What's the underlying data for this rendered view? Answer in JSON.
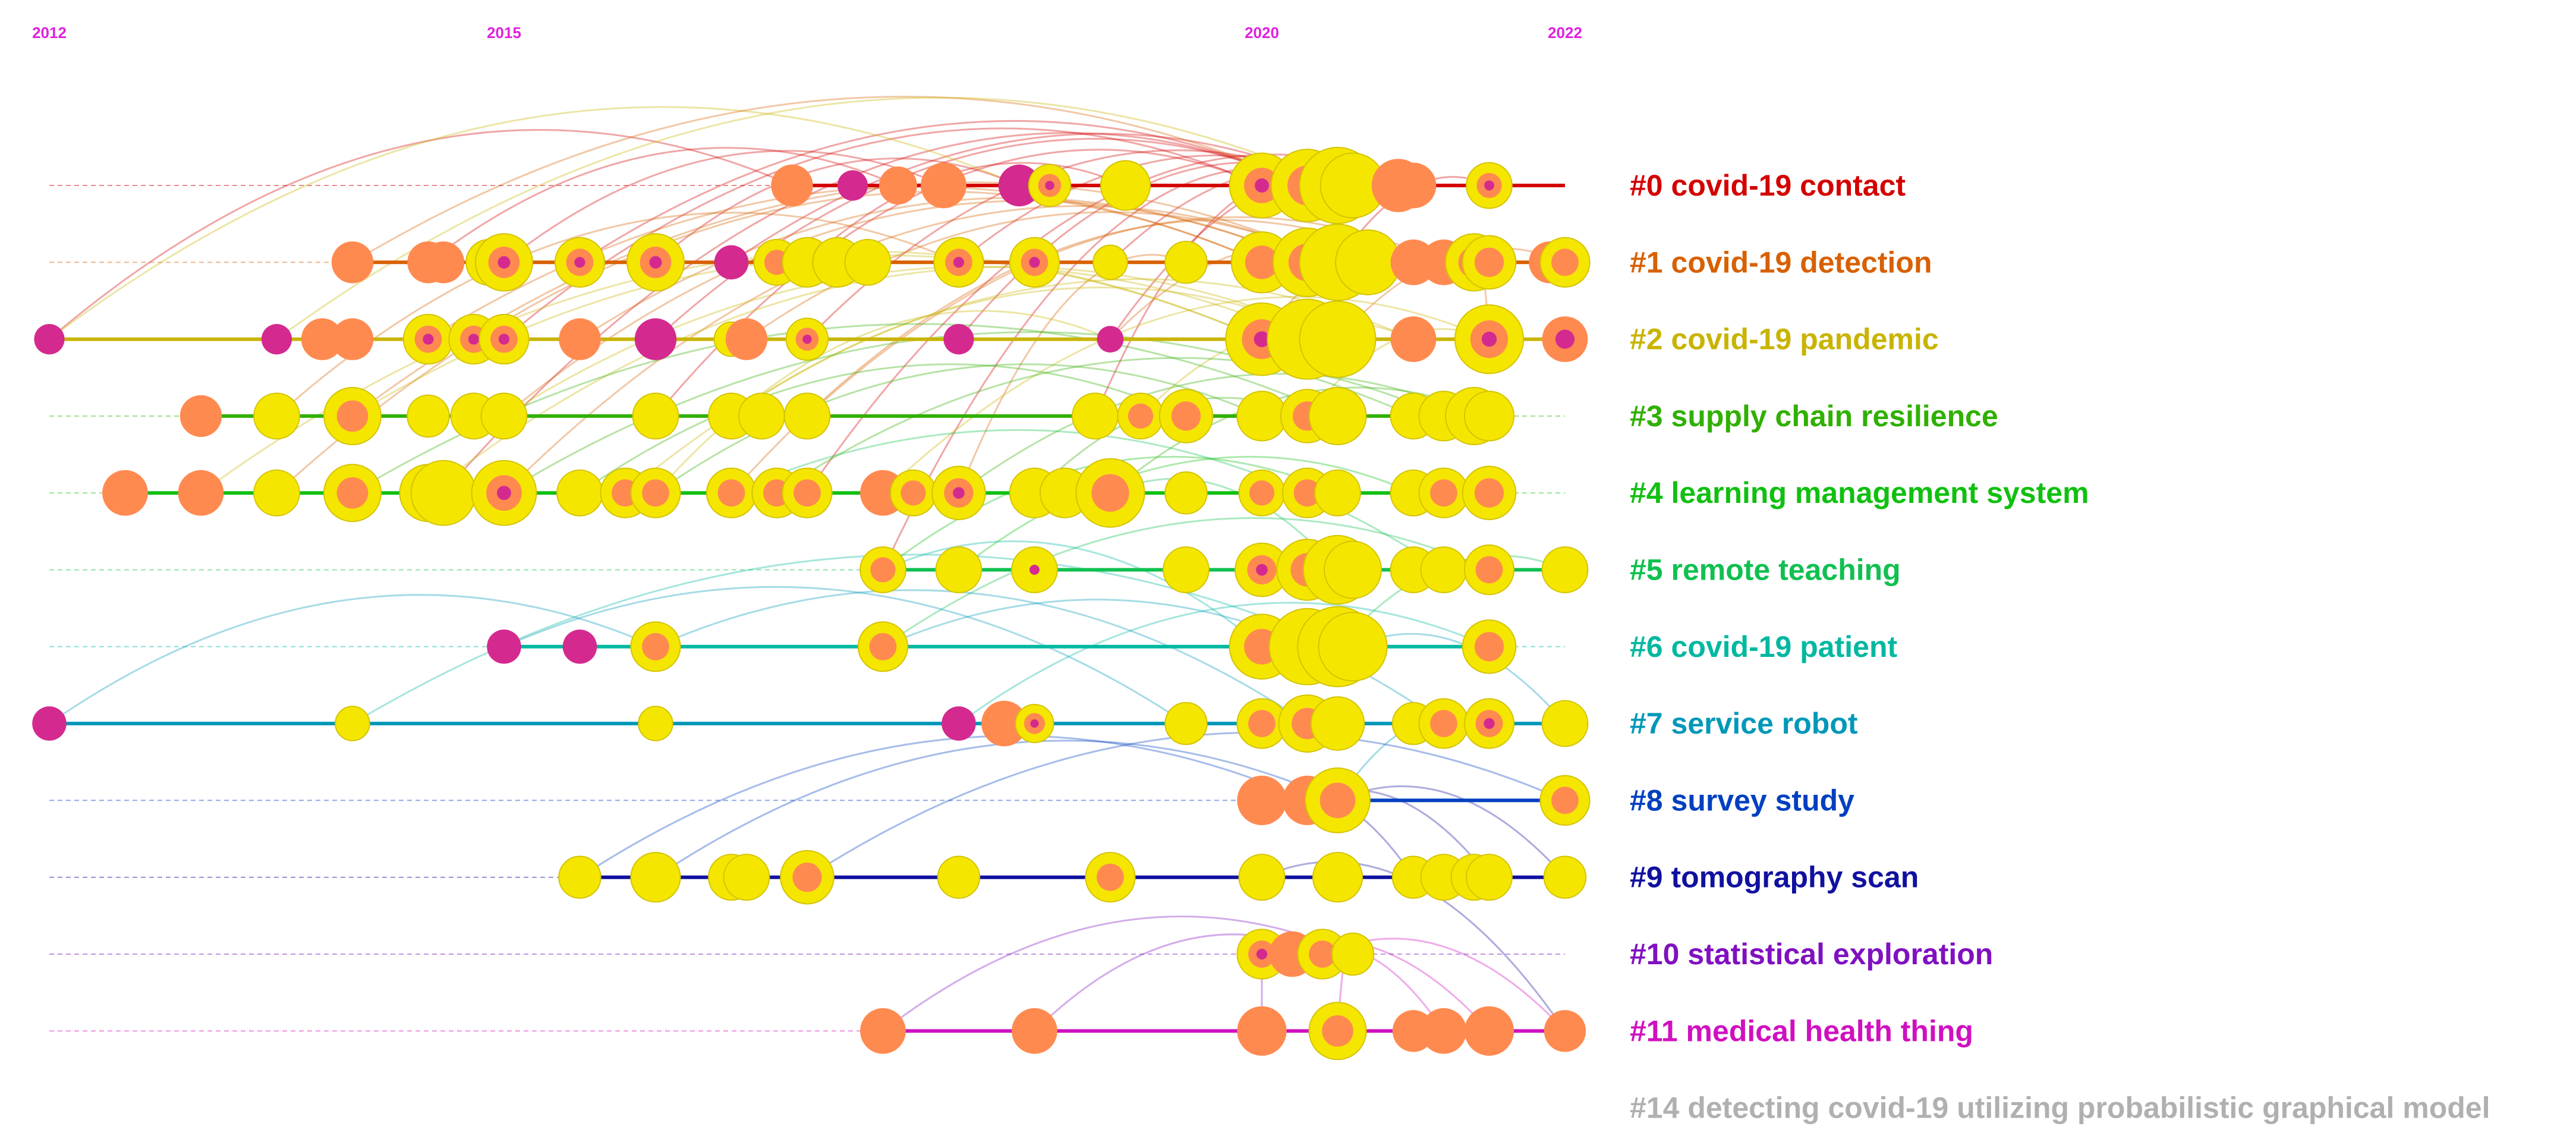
{
  "colors": {
    "year_label": "#e020e0",
    "node_outer": "#f5e600",
    "node_mid": "#ff8a50",
    "node_core": "#d42a8f",
    "node_stroke": "#d4c400"
  },
  "years": [
    {
      "label": "2012",
      "value": 2012
    },
    {
      "label": "2015",
      "value": 2015
    },
    {
      "label": "2020",
      "value": 2020
    },
    {
      "label": "2022",
      "value": 2022
    }
  ],
  "axis": {
    "min_year": 2012,
    "max_year": 2022
  },
  "clusters": [
    {
      "id": 0,
      "label": "#0 covid-19 contact",
      "color": "#d40000",
      "span": [
        2016.9,
        2022
      ],
      "nodes": [
        [
          2016.9,
          "m",
          2.2
        ],
        [
          2017.3,
          "c",
          1.6
        ],
        [
          2017.6,
          "m",
          2.0
        ],
        [
          2017.9,
          "m",
          2.4
        ],
        [
          2018.4,
          "c",
          2.2
        ],
        [
          2018.6,
          "ymc",
          2.2
        ],
        [
          2019.1,
          "y",
          2.6
        ],
        [
          2020,
          "ymc",
          3.4
        ],
        [
          2020.3,
          "ym",
          3.8
        ],
        [
          2020.5,
          "y",
          4.0
        ],
        [
          2020.6,
          "y",
          3.4
        ],
        [
          2020.9,
          "m",
          2.8
        ],
        [
          2021.0,
          "m",
          2.4
        ],
        [
          2021.5,
          "ymc",
          2.4
        ]
      ]
    },
    {
      "id": 1,
      "label": "#1 covid-19 detection",
      "color": "#d86000",
      "span": [
        2014.0,
        2022
      ],
      "nodes": [
        [
          2014.0,
          "m",
          2.2
        ],
        [
          2014.5,
          "m",
          2.2
        ],
        [
          2014.6,
          "m",
          2.2
        ],
        [
          2014.9,
          "ym",
          2.4
        ],
        [
          2015.0,
          "ymc",
          3.0
        ],
        [
          2015.5,
          "ymc",
          2.6
        ],
        [
          2016.0,
          "ymc",
          3.0
        ],
        [
          2016.5,
          "c",
          1.8
        ],
        [
          2016.8,
          "ym",
          2.4
        ],
        [
          2017.0,
          "y",
          2.6
        ],
        [
          2017.2,
          "y",
          2.6
        ],
        [
          2017.4,
          "y",
          2.4
        ],
        [
          2018.0,
          "ymc",
          2.6
        ],
        [
          2018.5,
          "ymc",
          2.6
        ],
        [
          2019.0,
          "y",
          1.8
        ],
        [
          2019.5,
          "y",
          2.2
        ],
        [
          2020,
          "ym",
          3.2
        ],
        [
          2020.3,
          "ym",
          3.6
        ],
        [
          2020.5,
          "y",
          4.0
        ],
        [
          2020.7,
          "y",
          3.4
        ],
        [
          2021.0,
          "m",
          2.4
        ],
        [
          2021.2,
          "m",
          2.4
        ],
        [
          2021.4,
          "ymc",
          3.0
        ],
        [
          2021.5,
          "ym",
          2.8
        ],
        [
          2021.9,
          "m",
          2.2
        ],
        [
          2022,
          "ym",
          2.6
        ]
      ]
    },
    {
      "id": 2,
      "label": "#2 covid-19 pandemic",
      "color": "#c8b400",
      "span": [
        2012.0,
        2022
      ],
      "nodes": [
        [
          2012.0,
          "c",
          1.6
        ],
        [
          2013.5,
          "c",
          1.6
        ],
        [
          2013.8,
          "m",
          2.2
        ],
        [
          2014.0,
          "m",
          2.2
        ],
        [
          2014.5,
          "ymc",
          2.6
        ],
        [
          2014.8,
          "ymc",
          2.6
        ],
        [
          2015.0,
          "ymc",
          2.6
        ],
        [
          2015.5,
          "m",
          2.2
        ],
        [
          2016.0,
          "c",
          2.2
        ],
        [
          2016.5,
          "y",
          1.8
        ],
        [
          2016.6,
          "m",
          2.2
        ],
        [
          2017.0,
          "ymc",
          2.2
        ],
        [
          2018.0,
          "c",
          1.6
        ],
        [
          2019.0,
          "c",
          1.4
        ],
        [
          2020,
          "ymc",
          3.8
        ],
        [
          2020.3,
          "y",
          4.2
        ],
        [
          2020.5,
          "y",
          4.0
        ],
        [
          2021.0,
          "m",
          2.4
        ],
        [
          2021.5,
          "ymc",
          3.6
        ],
        [
          2022,
          "mc",
          2.4
        ]
      ]
    },
    {
      "id": 3,
      "label": "#3 supply chain resilience",
      "color": "#30b000",
      "span": [
        2013.0,
        2021.5
      ],
      "nodes": [
        [
          2013.0,
          "m",
          2.2
        ],
        [
          2013.5,
          "y",
          2.4
        ],
        [
          2014.0,
          "ym",
          3.0
        ],
        [
          2014.5,
          "y",
          2.2
        ],
        [
          2014.8,
          "y",
          2.4
        ],
        [
          2015.0,
          "y",
          2.4
        ],
        [
          2016.0,
          "y",
          2.4
        ],
        [
          2016.5,
          "y",
          2.4
        ],
        [
          2016.7,
          "y",
          2.4
        ],
        [
          2017.0,
          "y",
          2.4
        ],
        [
          2018.9,
          "y",
          2.4
        ],
        [
          2019.2,
          "ym",
          2.4
        ],
        [
          2019.5,
          "ym",
          2.8
        ],
        [
          2020,
          "y",
          2.6
        ],
        [
          2020.3,
          "ym",
          2.8
        ],
        [
          2020.5,
          "y",
          3.0
        ],
        [
          2021.0,
          "y",
          2.4
        ],
        [
          2021.2,
          "y",
          2.6
        ],
        [
          2021.4,
          "y",
          3.0
        ],
        [
          2021.5,
          "y",
          2.6
        ]
      ]
    },
    {
      "id": 4,
      "label": "#4 learning management system",
      "color": "#10c010",
      "span": [
        2012.5,
        2021.5
      ],
      "nodes": [
        [
          2012.5,
          "m",
          2.4
        ],
        [
          2013.0,
          "m",
          2.4
        ],
        [
          2013.5,
          "y",
          2.4
        ],
        [
          2014.0,
          "ym",
          3.0
        ],
        [
          2014.5,
          "y",
          3.0
        ],
        [
          2014.6,
          "y",
          3.4
        ],
        [
          2015.0,
          "ymc",
          3.4
        ],
        [
          2015.5,
          "y",
          2.4
        ],
        [
          2015.8,
          "ym",
          2.6
        ],
        [
          2016.0,
          "ym",
          2.6
        ],
        [
          2016.5,
          "ym",
          2.6
        ],
        [
          2016.8,
          "ym",
          2.6
        ],
        [
          2017.0,
          "ym",
          2.6
        ],
        [
          2017.5,
          "m",
          2.4
        ],
        [
          2017.7,
          "ym",
          2.4
        ],
        [
          2018.0,
          "ymc",
          2.8
        ],
        [
          2018.5,
          "y",
          2.6
        ],
        [
          2018.7,
          "y",
          2.6
        ],
        [
          2019.0,
          "ym",
          3.6
        ],
        [
          2019.5,
          "y",
          2.2
        ],
        [
          2020,
          "ym",
          2.4
        ],
        [
          2020.3,
          "ym",
          2.6
        ],
        [
          2020.5,
          "y",
          2.4
        ],
        [
          2021.0,
          "y",
          2.4
        ],
        [
          2021.2,
          "ym",
          2.6
        ],
        [
          2021.5,
          "ym",
          2.8
        ]
      ]
    },
    {
      "id": 5,
      "label": "#5 remote teaching",
      "color": "#10c050",
      "span": [
        2017.5,
        2022
      ],
      "nodes": [
        [
          2017.5,
          "ym",
          2.4
        ],
        [
          2018.0,
          "y",
          2.4
        ],
        [
          2018.5,
          "yc",
          2.4
        ],
        [
          2019.5,
          "y",
          2.4
        ],
        [
          2020,
          "ymc",
          2.8
        ],
        [
          2020.3,
          "ym",
          3.2
        ],
        [
          2020.5,
          "y",
          3.6
        ],
        [
          2020.6,
          "y",
          3.0
        ],
        [
          2021.0,
          "y",
          2.4
        ],
        [
          2021.2,
          "y",
          2.4
        ],
        [
          2021.5,
          "ym",
          2.6
        ],
        [
          2022,
          "y",
          2.4
        ]
      ]
    },
    {
      "id": 6,
      "label": "#6 covid-19 patient",
      "color": "#00b8a0",
      "span": [
        2015.0,
        2021.5
      ],
      "nodes": [
        [
          2015.0,
          "c",
          1.8
        ],
        [
          2015.5,
          "c",
          1.8
        ],
        [
          2016.0,
          "ym",
          2.6
        ],
        [
          2017.5,
          "ym",
          2.6
        ],
        [
          2020,
          "ym",
          3.4
        ],
        [
          2020.3,
          "y",
          4.0
        ],
        [
          2020.5,
          "y",
          4.2
        ],
        [
          2020.6,
          "y",
          3.6
        ],
        [
          2021.5,
          "ym",
          2.8
        ]
      ]
    },
    {
      "id": 7,
      "label": "#7 service robot",
      "color": "#0098b8",
      "span": [
        2012.0,
        2022
      ],
      "nodes": [
        [
          2012.0,
          "c",
          1.8
        ],
        [
          2014.0,
          "y",
          1.8
        ],
        [
          2016.0,
          "y",
          1.8
        ],
        [
          2018.0,
          "c",
          1.8
        ],
        [
          2018.3,
          "m",
          2.4
        ],
        [
          2018.5,
          "ymc",
          2.0
        ],
        [
          2019.5,
          "y",
          2.2
        ],
        [
          2020,
          "ym",
          2.6
        ],
        [
          2020.3,
          "ym",
          3.0
        ],
        [
          2020.5,
          "y",
          2.8
        ],
        [
          2021.0,
          "y",
          2.2
        ],
        [
          2021.2,
          "ym",
          2.6
        ],
        [
          2021.5,
          "ymc",
          2.6
        ],
        [
          2022,
          "y",
          2.4
        ]
      ]
    },
    {
      "id": 8,
      "label": "#8 survey study",
      "color": "#0040c0",
      "span": [
        2020,
        2022
      ],
      "nodes": [
        [
          2020,
          "m",
          2.6
        ],
        [
          2020.3,
          "m",
          2.6
        ],
        [
          2020.5,
          "ym",
          3.4
        ],
        [
          2022,
          "ym",
          2.6
        ]
      ]
    },
    {
      "id": 9,
      "label": "#9 tomography scan",
      "color": "#1010a0",
      "span": [
        2015.5,
        2022
      ],
      "nodes": [
        [
          2015.5,
          "y",
          2.2
        ],
        [
          2016.0,
          "y",
          2.6
        ],
        [
          2016.5,
          "y",
          2.4
        ],
        [
          2016.6,
          "y",
          2.4
        ],
        [
          2017.0,
          "ym",
          2.8
        ],
        [
          2018.0,
          "y",
          2.2
        ],
        [
          2019.0,
          "ym",
          2.6
        ],
        [
          2020,
          "y",
          2.4
        ],
        [
          2020.5,
          "y",
          2.6
        ],
        [
          2021.0,
          "y",
          2.2
        ],
        [
          2021.2,
          "y",
          2.4
        ],
        [
          2021.4,
          "y",
          2.4
        ],
        [
          2021.5,
          "y",
          2.4
        ],
        [
          2022,
          "y",
          2.2
        ]
      ]
    },
    {
      "id": 10,
      "label": "#10 statistical exploration",
      "color": "#8010c0",
      "span": [
        2020,
        2020.6
      ],
      "nodes": [
        [
          2020,
          "ymc",
          2.6
        ],
        [
          2020.2,
          "m",
          2.4
        ],
        [
          2020.4,
          "ym",
          2.6
        ],
        [
          2020.6,
          "y",
          2.2
        ]
      ]
    },
    {
      "id": 11,
      "label": "#11 medical health thing",
      "color": "#d010c0",
      "span": [
        2017.5,
        2022
      ],
      "nodes": [
        [
          2017.5,
          "m",
          2.4
        ],
        [
          2018.5,
          "m",
          2.4
        ],
        [
          2020,
          "m",
          2.6
        ],
        [
          2020.5,
          "ym",
          3.0
        ],
        [
          2021.0,
          "m",
          2.2
        ],
        [
          2021.2,
          "m",
          2.4
        ],
        [
          2021.5,
          "m",
          2.6
        ],
        [
          2022,
          "m",
          2.2
        ]
      ]
    },
    {
      "id": 14,
      "label": "#14 detecting covid-19 utilizing probabilistic graphical model",
      "color": "#b0b0b0",
      "span": null,
      "nodes": []
    }
  ],
  "links": [
    [
      0,
      2016.9,
      2,
      2012.0
    ],
    [
      0,
      2017.6,
      1,
      2014.5
    ],
    [
      0,
      2017.9,
      1,
      2015.0
    ],
    [
      0,
      2018.4,
      1,
      2016.0
    ],
    [
      0,
      2019.1,
      1,
      2017.0
    ],
    [
      0,
      2020.3,
      1,
      2015.5
    ],
    [
      0,
      2020.5,
      1,
      2016.5
    ],
    [
      0,
      2020.6,
      1,
      2018.0
    ],
    [
      0,
      2020.9,
      1,
      2019.0
    ],
    [
      0,
      2021.5,
      1,
      2020.5
    ],
    [
      0,
      2020,
      2,
      2015.0
    ],
    [
      0,
      2020.3,
      2,
      2016.0
    ],
    [
      0,
      2020.5,
      2,
      2017.0
    ],
    [
      0,
      2020.6,
      2,
      2018.0
    ],
    [
      0,
      2021.0,
      2,
      2019.0
    ],
    [
      0,
      2020,
      3,
      2016.0
    ],
    [
      0,
      2020.5,
      3,
      2018.9
    ],
    [
      0,
      2021.0,
      4,
      2017.0
    ],
    [
      0,
      2020.3,
      4,
      2014.6
    ],
    [
      0,
      2020.5,
      5,
      2017.5
    ],
    [
      1,
      2020,
      2,
      2014.5
    ],
    [
      1,
      2020.3,
      2,
      2015.5
    ],
    [
      1,
      2020.5,
      2,
      2016.6
    ],
    [
      1,
      2020.7,
      2,
      2019.0
    ],
    [
      1,
      2021.0,
      2,
      2020
    ],
    [
      1,
      2021.4,
      2,
      2021.5
    ],
    [
      1,
      2022,
      2,
      2020.5
    ],
    [
      1,
      2020.5,
      3,
      2014.0
    ],
    [
      1,
      2020.3,
      3,
      2015.0
    ],
    [
      1,
      2021.2,
      3,
      2017.0
    ],
    [
      1,
      2020,
      4,
      2013.5
    ],
    [
      1,
      2020.5,
      4,
      2015.0
    ],
    [
      1,
      2021.0,
      4,
      2016.5
    ],
    [
      1,
      2019.5,
      4,
      2018.0
    ],
    [
      1,
      2018.0,
      3,
      2013.5
    ],
    [
      2,
      2020,
      3,
      2014.0
    ],
    [
      2,
      2020.3,
      3,
      2015.0
    ],
    [
      2,
      2020.5,
      3,
      2016.5
    ],
    [
      2,
      2021.0,
      3,
      2019.2
    ],
    [
      2,
      2021.5,
      3,
      2020.3
    ],
    [
      2,
      2020,
      4,
      2013.0
    ],
    [
      2,
      2020.5,
      4,
      2014.5
    ],
    [
      2,
      2021.0,
      4,
      2015.8
    ],
    [
      2,
      2021.5,
      4,
      2017.5
    ],
    [
      2,
      2019.0,
      4,
      2016.0
    ],
    [
      3,
      2020.5,
      4,
      2014.0
    ],
    [
      3,
      2021.0,
      4,
      2015.0
    ],
    [
      3,
      2021.2,
      4,
      2016.8
    ],
    [
      3,
      2021.4,
      4,
      2018.0
    ],
    [
      3,
      2020.3,
      4,
      2018.5
    ],
    [
      3,
      2021.5,
      4,
      2019.0
    ],
    [
      3,
      2020,
      4,
      2016.0
    ],
    [
      3,
      2019.5,
      4,
      2015.5
    ],
    [
      4,
      2021.0,
      5,
      2018.0
    ],
    [
      4,
      2020.5,
      5,
      2017.5
    ],
    [
      5,
      2020.5,
      4,
      2019.0
    ],
    [
      5,
      2021.2,
      4,
      2016.5
    ],
    [
      5,
      2022,
      6,
      2020.5
    ],
    [
      5,
      2021.5,
      6,
      2017.5
    ],
    [
      6,
      2021.5,
      7,
      2018.0
    ],
    [
      6,
      2020.5,
      7,
      2014.0
    ],
    [
      6,
      2020,
      5,
      2017.5
    ],
    [
      7,
      2020.3,
      6,
      2016.0
    ],
    [
      7,
      2021.2,
      6,
      2017.5
    ],
    [
      7,
      2022,
      6,
      2020.6
    ],
    [
      7,
      2021.5,
      8,
      2020.5
    ],
    [
      7,
      2019.5,
      6,
      2015.0
    ],
    [
      7,
      2012.0,
      6,
      2016.0
    ],
    [
      8,
      2020.5,
      9,
      2016.0
    ],
    [
      8,
      2020.3,
      9,
      2015.5
    ],
    [
      8,
      2022,
      9,
      2017.0
    ],
    [
      9,
      2021.0,
      8,
      2020
    ],
    [
      9,
      2022,
      8,
      2020.5
    ],
    [
      9,
      2021.5,
      8,
      2020.3
    ],
    [
      10,
      2020.4,
      11,
      2018.5
    ],
    [
      10,
      2020.6,
      11,
      2017.5
    ],
    [
      10,
      2020,
      11,
      2020
    ],
    [
      11,
      2022,
      10,
      2020.4
    ],
    [
      11,
      2021.2,
      10,
      2020.2
    ],
    [
      11,
      2021.5,
      10,
      2020
    ],
    [
      11,
      2020.5,
      10,
      2020.6
    ],
    [
      9,
      2020,
      11,
      2022
    ],
    [
      2,
      2012.0,
      0,
      2018.4
    ],
    [
      1,
      2014.0,
      0,
      2020.3
    ],
    [
      2,
      2013.5,
      0,
      2020.5
    ]
  ]
}
